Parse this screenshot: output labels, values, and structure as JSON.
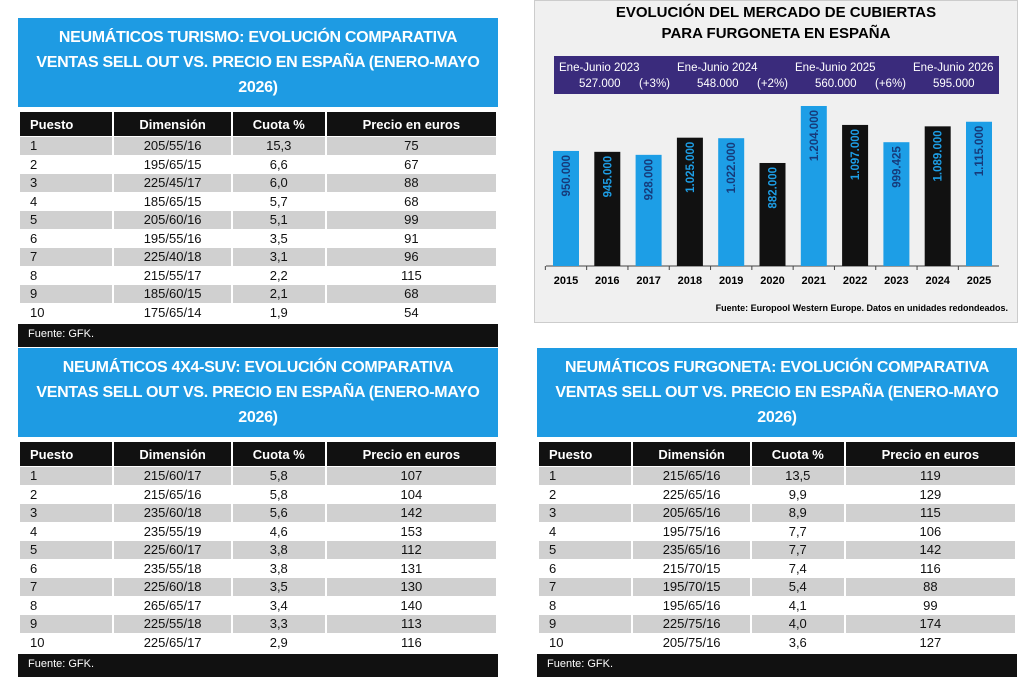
{
  "chart_data": {
    "type": "bar",
    "title": [
      "EVOLUCIÓN DEL MERCADO DE CUBIERTAS",
      "PARA FURGONETA EN ESPAÑA"
    ],
    "categories": [
      "2015",
      "2016",
      "2017",
      "2018",
      "2019",
      "2020",
      "2021",
      "2022",
      "2023",
      "2024",
      "2025"
    ],
    "values": [
      950000,
      945000,
      928000,
      1025000,
      1022000,
      882000,
      1204000,
      1097000,
      999425,
      1089000,
      1115000
    ],
    "value_labels": [
      "950.000",
      "945.000",
      "928.000",
      "1.025.000",
      "1.022.000",
      "882.000",
      "1.204.000",
      "1.097.000",
      "999.425",
      "1.089.000",
      "1.115.000"
    ],
    "colors": [
      "#1d9ee6",
      "#111111",
      "#1d9ee6",
      "#111111",
      "#1d9ee6",
      "#111111",
      "#1d9ee6",
      "#111111",
      "#1d9ee6",
      "#111111",
      "#1d9ee6"
    ],
    "ylim": [
      300000,
      1300000
    ],
    "annotations": [
      {
        "label": "Ene-Junio 2023",
        "value": "527.000",
        "change": "(+3%)"
      },
      {
        "label": "Ene-Junio 2024",
        "value": "548.000",
        "change": "(+2%)"
      },
      {
        "label": "Ene-Junio 2025",
        "value": "560.000",
        "change": "(+6%)"
      },
      {
        "label": "Ene-Junio 2026",
        "value": "595.000"
      }
    ],
    "source": "Fuente: Europool Western Europe. Datos en unidades redondeados."
  },
  "tables": [
    {
      "title": [
        "NEUMÁTICOS TURISMO: EVOLUCIÓN COMPARATIVA",
        "VENTAS SELL OUT VS. PRECIO EN ESPAÑA (ENERO-MAYO 2026)"
      ],
      "header": [
        "Puesto",
        "Dimensión",
        "Cuota %",
        "Precio en euros"
      ],
      "rows": [
        [
          "1",
          "205/55/16",
          "15,3",
          "75"
        ],
        [
          "2",
          "195/65/15",
          "6,6",
          "67"
        ],
        [
          "3",
          "225/45/17",
          "6,0",
          "88"
        ],
        [
          "4",
          "185/65/15",
          "5,7",
          "68"
        ],
        [
          "5",
          "205/60/16",
          "5,1",
          "99"
        ],
        [
          "6",
          "195/55/16",
          "3,5",
          "91"
        ],
        [
          "7",
          "225/40/18",
          "3,1",
          "96"
        ],
        [
          "8",
          "215/55/17",
          "2,2",
          "115"
        ],
        [
          "9",
          "185/60/15",
          "2,1",
          "68"
        ],
        [
          "10",
          "175/65/14",
          "1,9",
          "54"
        ]
      ],
      "source": "Fuente: GFK."
    },
    {
      "title": [
        "NEUMÁTICOS 4X4-SUV: EVOLUCIÓN COMPARATIVA",
        "VENTAS SELL OUT VS. PRECIO EN ESPAÑA (ENERO-MAYO 2026)"
      ],
      "header": [
        "Puesto",
        "Dimensión",
        "Cuota %",
        "Precio en euros"
      ],
      "rows": [
        [
          "1",
          "215/60/17",
          "5,8",
          "107"
        ],
        [
          "2",
          "215/65/16",
          "5,8",
          "104"
        ],
        [
          "3",
          "235/60/18",
          "5,6",
          "142"
        ],
        [
          "4",
          "235/55/19",
          "4,6",
          "153"
        ],
        [
          "5",
          "225/60/17",
          "3,8",
          "112"
        ],
        [
          "6",
          "235/55/18",
          "3,8",
          "131"
        ],
        [
          "7",
          "225/60/18",
          "3,5",
          "130"
        ],
        [
          "8",
          "265/65/17",
          "3,4",
          "140"
        ],
        [
          "9",
          "225/55/18",
          "3,3",
          "113"
        ],
        [
          "10",
          "225/65/17",
          "2,9",
          "116"
        ]
      ],
      "source": "Fuente: GFK."
    },
    {
      "title": [
        "NEUMÁTICOS FURGONETA: EVOLUCIÓN COMPARATIVA",
        "VENTAS SELL OUT VS. PRECIO EN ESPAÑA (ENERO-MAYO 2026)"
      ],
      "header": [
        "Puesto",
        "Dimensión",
        "Cuota %",
        "Precio en euros"
      ],
      "rows": [
        [
          "1",
          "215/65/16",
          "13,5",
          "119"
        ],
        [
          "2",
          "225/65/16",
          "9,9",
          "129"
        ],
        [
          "3",
          "205/65/16",
          "8,9",
          "115"
        ],
        [
          "4",
          "195/75/16",
          "7,7",
          "106"
        ],
        [
          "5",
          "235/65/16",
          "7,7",
          "142"
        ],
        [
          "6",
          "215/70/15",
          "7,4",
          "116"
        ],
        [
          "7",
          "195/70/15",
          "5,4",
          "88"
        ],
        [
          "8",
          "195/65/16",
          "4,1",
          "99"
        ],
        [
          "9",
          "225/75/16",
          "4,0",
          "174"
        ],
        [
          "10",
          "205/75/16",
          "3,6",
          "127"
        ]
      ],
      "source": "Fuente: GFK."
    }
  ]
}
